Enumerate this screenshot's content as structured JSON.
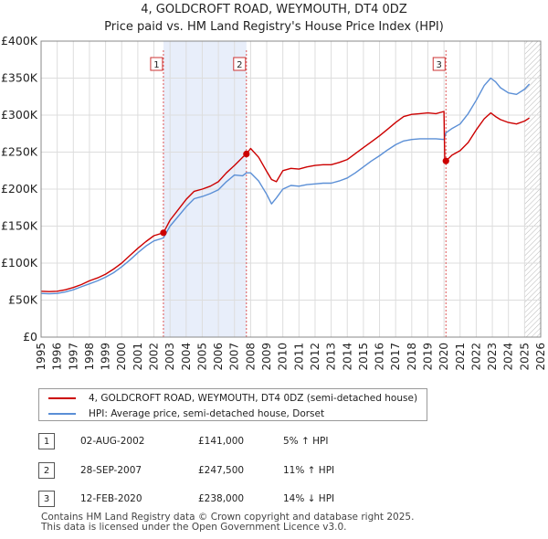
{
  "chart_data": {
    "type": "line",
    "title": "4, GOLDCROFT ROAD, WEYMOUTH, DT4 0DZ",
    "subtitle": "Price paid vs. HM Land Registry's House Price Index (HPI)",
    "xlim": [
      1995,
      2026
    ],
    "ylim": [
      0,
      400000
    ],
    "y_ticks": [
      0,
      50000,
      100000,
      150000,
      200000,
      250000,
      300000,
      350000,
      400000
    ],
    "y_tick_labels": [
      "£0",
      "£50K",
      "£100K",
      "£150K",
      "£200K",
      "£250K",
      "£300K",
      "£350K",
      "£400K"
    ],
    "x_ticks": [
      1995,
      1996,
      1997,
      1998,
      1999,
      2000,
      2001,
      2002,
      2003,
      2004,
      2005,
      2006,
      2007,
      2008,
      2009,
      2010,
      2011,
      2012,
      2013,
      2014,
      2015,
      2016,
      2017,
      2018,
      2019,
      2020,
      2021,
      2022,
      2023,
      2024,
      2025,
      2026
    ],
    "x_tick_labels": [
      "1995",
      "1996",
      "1997",
      "1998",
      "1999",
      "2000",
      "2001",
      "2002",
      "2003",
      "2004",
      "2005",
      "2006",
      "2007",
      "2008",
      "2009",
      "2010",
      "2011",
      "2012",
      "2013",
      "2014",
      "2015",
      "2016",
      "2017",
      "2018",
      "2019",
      "2020",
      "2021",
      "2022",
      "2023",
      "2024",
      "2025",
      "2026"
    ],
    "shaded_ranges": [
      [
        2002.59,
        2007.74
      ]
    ],
    "hatch_from": 2025.0,
    "grid": true,
    "series": [
      {
        "name": "4, GOLDCROFT ROAD, WEYMOUTH, DT4 0DZ (semi-detached house)",
        "color": "#cc0000",
        "x": [
          1995.0,
          1995.5,
          1996.0,
          1996.5,
          1997.0,
          1997.5,
          1998.0,
          1998.5,
          1999.0,
          1999.5,
          2000.0,
          2000.5,
          2001.0,
          2001.5,
          2002.0,
          2002.59,
          2003.0,
          2003.5,
          2004.0,
          2004.5,
          2005.0,
          2005.5,
          2006.0,
          2006.5,
          2007.0,
          2007.5,
          2007.74,
          2008.0,
          2008.5,
          2009.0,
          2009.3,
          2009.6,
          2010.0,
          2010.5,
          2011.0,
          2011.5,
          2012.0,
          2012.5,
          2013.0,
          2013.5,
          2014.0,
          2014.5,
          2015.0,
          2015.5,
          2016.0,
          2016.5,
          2017.0,
          2017.5,
          2018.0,
          2018.5,
          2019.0,
          2019.5,
          2020.0,
          2020.05,
          2020.12,
          2020.5,
          2021.0,
          2021.5,
          2022.0,
          2022.5,
          2022.9,
          2023.2,
          2023.5,
          2024.0,
          2024.5,
          2025.0,
          2025.3
        ],
        "y": [
          62000,
          61500,
          62000,
          64000,
          67000,
          71000,
          76000,
          80000,
          85000,
          92000,
          100000,
          110000,
          120000,
          129000,
          137000,
          141000,
          158000,
          172000,
          186000,
          197000,
          200000,
          204000,
          210000,
          222000,
          232000,
          243000,
          247500,
          255000,
          243000,
          224000,
          213000,
          210000,
          225000,
          228000,
          227000,
          230000,
          232000,
          233000,
          233000,
          236000,
          240000,
          248000,
          256000,
          264000,
          272000,
          281000,
          290000,
          298000,
          301000,
          302000,
          303000,
          302000,
          305000,
          238000,
          238000,
          246000,
          252000,
          263000,
          280000,
          295000,
          303000,
          298000,
          294000,
          290000,
          288000,
          292000,
          296000
        ]
      },
      {
        "name": "HPI: Average price, semi-detached house, Dorset",
        "color": "#5b8fd6",
        "x": [
          1995.0,
          1995.5,
          1996.0,
          1996.5,
          1997.0,
          1997.5,
          1998.0,
          1998.5,
          1999.0,
          1999.5,
          2000.0,
          2000.5,
          2001.0,
          2001.5,
          2002.0,
          2002.59,
          2003.0,
          2003.5,
          2004.0,
          2004.5,
          2005.0,
          2005.5,
          2006.0,
          2006.5,
          2007.0,
          2007.5,
          2007.74,
          2008.0,
          2008.5,
          2009.0,
          2009.3,
          2009.6,
          2010.0,
          2010.5,
          2011.0,
          2011.5,
          2012.0,
          2012.5,
          2013.0,
          2013.5,
          2014.0,
          2014.5,
          2015.0,
          2015.5,
          2016.0,
          2016.5,
          2017.0,
          2017.5,
          2018.0,
          2018.5,
          2019.0,
          2019.5,
          2020.0,
          2020.12,
          2020.5,
          2021.0,
          2021.5,
          2022.0,
          2022.5,
          2022.9,
          2023.2,
          2023.5,
          2024.0,
          2024.5,
          2025.0,
          2025.3
        ],
        "y": [
          59000,
          58500,
          59000,
          61000,
          64000,
          68000,
          72000,
          76000,
          81000,
          87000,
          95000,
          104000,
          114000,
          123000,
          130000,
          134000,
          150000,
          163000,
          176000,
          187000,
          190000,
          194000,
          199000,
          210000,
          219000,
          218000,
          222000,
          222000,
          211000,
          193000,
          180000,
          188000,
          200000,
          205000,
          204000,
          206000,
          207000,
          208000,
          208000,
          211000,
          215000,
          222000,
          230000,
          238000,
          245000,
          253000,
          260000,
          265000,
          267000,
          268000,
          268000,
          268000,
          267000,
          276000,
          282000,
          288000,
          302000,
          320000,
          340000,
          350000,
          345000,
          337000,
          330000,
          328000,
          335000,
          342000
        ]
      }
    ],
    "sales": [
      {
        "label": "1",
        "x": 2002.59,
        "y": 141000
      },
      {
        "label": "2",
        "x": 2007.74,
        "y": 247500
      },
      {
        "label": "3",
        "x": 2020.12,
        "y": 238000
      }
    ]
  },
  "legend": {
    "property_label": "4, GOLDCROFT ROAD, WEYMOUTH, DT4 0DZ (semi-detached house)",
    "hpi_label": "HPI: Average price, semi-detached house, Dorset"
  },
  "transactions": [
    {
      "num": "1",
      "date": "02-AUG-2002",
      "price": "£141,000",
      "hpi": "5% ↑ HPI"
    },
    {
      "num": "2",
      "date": "28-SEP-2007",
      "price": "£247,500",
      "hpi": "11% ↑ HPI"
    },
    {
      "num": "3",
      "date": "12-FEB-2020",
      "price": "£238,000",
      "hpi": "14% ↓ HPI"
    }
  ],
  "footer": {
    "line1": "Contains HM Land Registry data © Crown copyright and database right 2025.",
    "line2": "This data is licensed under the Open Government Licence v3.0."
  },
  "colors": {
    "property": "#cc0000",
    "hpi": "#5b8fd6",
    "shade": "#e8eefa",
    "grid": "#dddddd",
    "vline": "#dd5555"
  }
}
